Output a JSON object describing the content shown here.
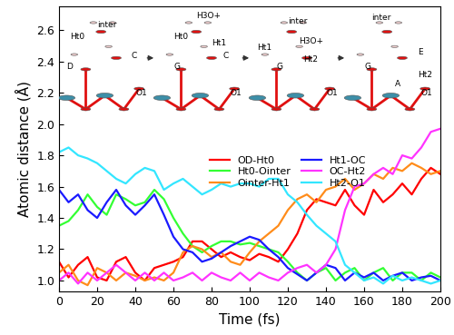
{
  "chart_data": {
    "type": "line",
    "x_label": "Time (fs)",
    "y_label": "Atomic distance (Å)",
    "x": [
      0,
      5,
      10,
      15,
      20,
      25,
      30,
      35,
      40,
      45,
      50,
      55,
      60,
      65,
      70,
      75,
      80,
      85,
      90,
      95,
      100,
      105,
      110,
      115,
      120,
      125,
      130,
      135,
      140,
      145,
      150,
      155,
      160,
      165,
      170,
      175,
      180,
      185,
      190,
      195,
      200
    ],
    "xlim": [
      0,
      200
    ],
    "xticks": [
      0,
      20,
      40,
      60,
      80,
      100,
      120,
      140,
      160,
      180,
      200
    ],
    "ylim": [
      0.93,
      2.75
    ],
    "yticks": [
      1.0,
      1.2,
      1.4,
      1.6,
      1.8,
      2.0,
      2.2,
      2.4,
      2.6
    ],
    "legend": "center",
    "series": [
      {
        "name": "OD-Ht0",
        "color": "#ff0000",
        "values": [
          1.12,
          1.02,
          1.1,
          1.15,
          1.02,
          1.0,
          1.12,
          1.15,
          1.05,
          1.0,
          1.08,
          1.1,
          1.12,
          1.15,
          1.25,
          1.25,
          1.2,
          1.15,
          1.18,
          1.15,
          1.13,
          1.17,
          1.15,
          1.12,
          1.2,
          1.3,
          1.45,
          1.52,
          1.5,
          1.48,
          1.58,
          1.48,
          1.42,
          1.58,
          1.5,
          1.55,
          1.62,
          1.55,
          1.65,
          1.72,
          1.68
        ]
      },
      {
        "name": "Ht0-Ointer",
        "color": "#33ff33",
        "values": [
          1.35,
          1.38,
          1.45,
          1.55,
          1.47,
          1.42,
          1.55,
          1.52,
          1.48,
          1.5,
          1.58,
          1.52,
          1.4,
          1.3,
          1.22,
          1.18,
          1.22,
          1.25,
          1.25,
          1.23,
          1.24,
          1.22,
          1.2,
          1.18,
          1.12,
          1.05,
          1.0,
          1.05,
          1.08,
          1.0,
          1.05,
          1.08,
          1.0,
          1.05,
          1.08,
          1.0,
          1.05,
          1.05,
          1.0,
          1.05,
          1.02
        ]
      },
      {
        "name": "Ointer-Ht1",
        "color": "#ff8c1a",
        "values": [
          1.05,
          1.1,
          1.0,
          0.97,
          1.08,
          1.05,
          1.0,
          1.05,
          1.03,
          1.0,
          1.02,
          1.0,
          1.05,
          1.18,
          1.22,
          1.2,
          1.15,
          1.18,
          1.12,
          1.1,
          1.18,
          1.25,
          1.3,
          1.35,
          1.45,
          1.52,
          1.55,
          1.5,
          1.58,
          1.6,
          1.65,
          1.58,
          1.62,
          1.68,
          1.65,
          1.72,
          1.7,
          1.75,
          1.72,
          1.68,
          1.7
        ]
      },
      {
        "name": "Ht1-OC",
        "color": "#1a1aff",
        "values": [
          1.58,
          1.5,
          1.55,
          1.45,
          1.4,
          1.5,
          1.58,
          1.48,
          1.42,
          1.48,
          1.55,
          1.42,
          1.28,
          1.2,
          1.18,
          1.12,
          1.14,
          1.18,
          1.22,
          1.25,
          1.28,
          1.26,
          1.2,
          1.15,
          1.08,
          1.04,
          1.0,
          1.05,
          1.1,
          1.08,
          1.0,
          1.05,
          1.02,
          1.05,
          1.0,
          1.03,
          1.05,
          1.0,
          1.02,
          1.03,
          1.0
        ]
      },
      {
        "name": "OC-Ht2",
        "color": "#ff33ff",
        "values": [
          1.0,
          1.05,
          0.98,
          1.05,
          1.0,
          1.05,
          1.1,
          1.05,
          1.0,
          1.05,
          1.0,
          1.05,
          1.0,
          1.02,
          1.05,
          1.0,
          1.05,
          1.02,
          1.0,
          1.05,
          1.0,
          1.05,
          1.02,
          1.0,
          1.05,
          1.08,
          1.1,
          1.05,
          1.1,
          1.2,
          1.45,
          1.6,
          1.62,
          1.68,
          1.72,
          1.68,
          1.8,
          1.78,
          1.85,
          1.95,
          1.97
        ]
      },
      {
        "name": "Ht2-O1",
        "color": "#33e6ff",
        "values": [
          1.82,
          1.85,
          1.8,
          1.78,
          1.75,
          1.7,
          1.65,
          1.62,
          1.68,
          1.72,
          1.7,
          1.58,
          1.62,
          1.65,
          1.6,
          1.55,
          1.58,
          1.62,
          1.6,
          1.62,
          1.62,
          1.6,
          1.65,
          1.65,
          1.55,
          1.5,
          1.42,
          1.35,
          1.3,
          1.25,
          1.1,
          1.05,
          1.0,
          1.02,
          0.98,
          1.03,
          1.0,
          1.02,
          1.0,
          0.98,
          1.0
        ]
      }
    ],
    "inset_labels": [
      [
        "Ht0",
        "inter",
        "D",
        "C",
        "O1"
      ],
      [
        "Ht0",
        "H3O+",
        "Ht1",
        "C",
        "G",
        "O1"
      ],
      [
        "inter",
        "Ht1",
        "H3O+",
        "Ht2",
        "G",
        "O1"
      ],
      [
        "inter",
        "E",
        "G",
        "A",
        "Ht2",
        "O1"
      ]
    ]
  }
}
